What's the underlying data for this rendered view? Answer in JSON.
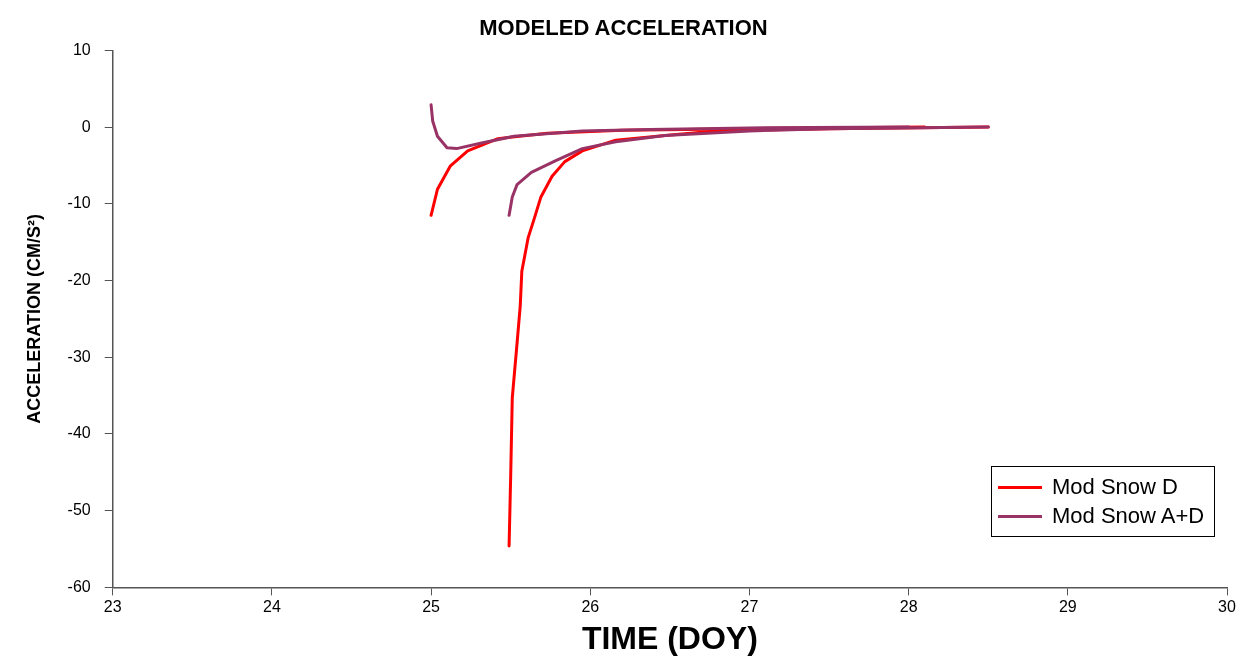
{
  "chart_data": {
    "type": "line",
    "title": "MODELED ACCELERATION",
    "xlabel": "TIME (DOY)",
    "ylabel": "ACCELERATION (CM/S²)",
    "xlim": [
      23,
      30
    ],
    "xticks": [
      23,
      24,
      25,
      26,
      27,
      28,
      29,
      30
    ],
    "ylim": [
      -60,
      10
    ],
    "yticks": [
      -60,
      -50,
      -40,
      -30,
      -20,
      -10,
      0,
      10
    ],
    "grid": false,
    "legend": "bottom right",
    "marker": "none",
    "line_style": "solid",
    "series": [
      {
        "name": "Mod Snow D",
        "color": "#ff0000",
        "x": [
          25.0,
          25.04,
          25.12,
          25.23,
          25.42,
          25.73,
          26.2,
          27.0,
          28.1
        ],
        "values": [
          -11.5,
          -8.1,
          -5.1,
          -3.1,
          -1.5,
          -0.8,
          -0.4,
          -0.2,
          0
        ]
      },
      {
        "color": "#ff0000",
        "x": [
          25.49,
          25.5,
          25.51,
          25.54,
          25.56,
          25.57,
          25.61,
          25.65,
          25.69,
          25.76,
          25.84,
          25.95,
          26.16,
          26.47,
          26.79,
          27.5,
          28.5
        ],
        "values": [
          -54.6,
          -45.5,
          -35.3,
          -28.2,
          -23.3,
          -18.8,
          -14.4,
          -11.8,
          -9.1,
          -6.4,
          -4.5,
          -3.1,
          -1.7,
          -1.1,
          -0.5,
          -0.2,
          0
        ]
      },
      {
        "name": "Mod Snow A+D",
        "color": "#993366",
        "x": [
          25.0,
          25.01,
          25.04,
          25.1,
          25.16,
          25.31,
          25.52,
          25.95,
          26.37,
          27.0,
          28.0
        ],
        "values": [
          2.9,
          0.8,
          -1.2,
          -2.7,
          -2.8,
          -2.1,
          -1.2,
          -0.5,
          -0.3,
          -0.1,
          0
        ]
      },
      {
        "color": "#993366",
        "x": [
          25.49,
          25.51,
          25.54,
          25.63,
          25.78,
          25.95,
          26.16,
          26.47,
          27.0,
          27.5,
          28.5
        ],
        "values": [
          -11.5,
          -9.1,
          -7.5,
          -5.9,
          -4.4,
          -2.8,
          -1.9,
          -1.1,
          -0.5,
          -0.2,
          0
        ]
      }
    ]
  }
}
